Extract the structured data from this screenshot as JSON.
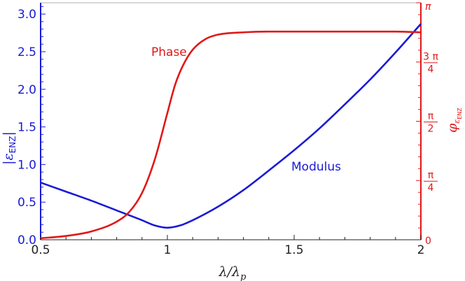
{
  "colors": {
    "modulus": "#1a1ad6",
    "phase": "#e01818",
    "frame": "#b0b0b0",
    "text": "#222222"
  },
  "chart_data": {
    "type": "line",
    "xlabel": "λ/λp",
    "ylabel_left": "|εENZ|",
    "ylabel_right": "φεENZ",
    "xlim": [
      0.5,
      2.0
    ],
    "ylim_left": [
      0,
      3.15
    ],
    "ylim_right": [
      0,
      3.14159
    ],
    "x_ticks": [
      {
        "value": 0.5,
        "label": "0.5"
      },
      {
        "value": 1.0,
        "label": "1"
      },
      {
        "value": 1.5,
        "label": "1.5"
      },
      {
        "value": 2.0,
        "label": "2"
      }
    ],
    "left_ticks": [
      {
        "value": 0.0,
        "label": "0.0"
      },
      {
        "value": 0.5,
        "label": "0.5"
      },
      {
        "value": 1.0,
        "label": "1.0"
      },
      {
        "value": 1.5,
        "label": "1.5"
      },
      {
        "value": 2.0,
        "label": "2.0"
      },
      {
        "value": 2.5,
        "label": "2.5"
      },
      {
        "value": 3.0,
        "label": "3.0"
      }
    ],
    "right_ticks": [
      {
        "value": 0,
        "label": "0",
        "kind": "plain"
      },
      {
        "value": 0.7854,
        "label": "π/4",
        "kind": "fraction",
        "num": "π",
        "den": "4"
      },
      {
        "value": 1.5708,
        "label": "π/2",
        "kind": "fraction",
        "num": "π",
        "den": "2"
      },
      {
        "value": 2.3562,
        "label": "3π/4",
        "kind": "fraction",
        "num": "3 π",
        "den": "4"
      },
      {
        "value": 3.14159,
        "label": "π",
        "kind": "plain"
      }
    ],
    "grid": false,
    "legend": "none",
    "series": [
      {
        "name": "Modulus",
        "axis": "left",
        "color": "#1a1ad6",
        "x": [
          0.5,
          0.6,
          0.7,
          0.8,
          0.9,
          0.95,
          1.0,
          1.05,
          1.1,
          1.2,
          1.3,
          1.4,
          1.5,
          1.6,
          1.7,
          1.8,
          1.9,
          2.0
        ],
        "y": [
          0.76,
          0.64,
          0.52,
          0.39,
          0.26,
          0.19,
          0.16,
          0.19,
          0.26,
          0.44,
          0.66,
          0.92,
          1.19,
          1.48,
          1.8,
          2.13,
          2.49,
          2.87
        ]
      },
      {
        "name": "Phase",
        "axis": "right",
        "color": "#e01818",
        "x": [
          0.5,
          0.6,
          0.7,
          0.8,
          0.85,
          0.9,
          0.95,
          1.0,
          1.03,
          1.06,
          1.1,
          1.15,
          1.2,
          1.3,
          1.4,
          1.5,
          1.7,
          1.9,
          2.0
        ],
        "y": [
          0.02,
          0.05,
          0.11,
          0.24,
          0.37,
          0.62,
          1.06,
          1.68,
          2.05,
          2.3,
          2.52,
          2.66,
          2.72,
          2.75,
          2.76,
          2.76,
          2.76,
          2.76,
          2.75
        ]
      }
    ]
  }
}
